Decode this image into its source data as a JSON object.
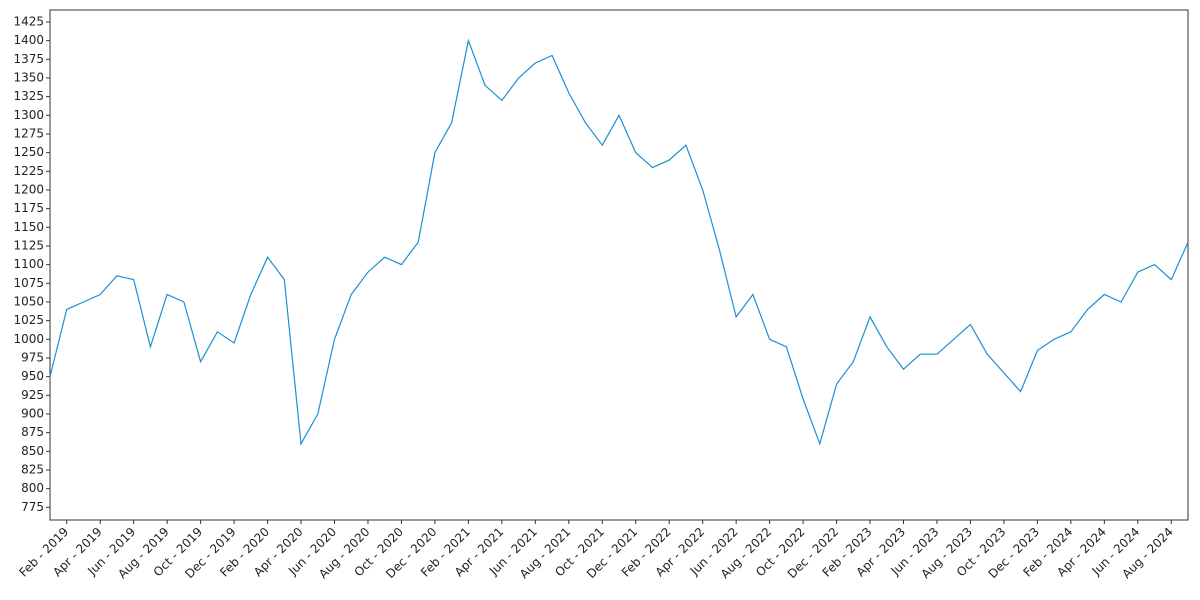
{
  "chart_data": {
    "type": "line",
    "x": [
      "2019-01",
      "2019-02",
      "2019-03",
      "2019-04",
      "2019-05",
      "2019-06",
      "2019-07",
      "2019-08",
      "2019-09",
      "2019-10",
      "2019-11",
      "2019-12",
      "2020-01",
      "2020-02",
      "2020-03",
      "2020-04",
      "2020-05",
      "2020-06",
      "2020-07",
      "2020-08",
      "2020-09",
      "2020-10",
      "2020-11",
      "2020-12",
      "2021-01",
      "2021-02",
      "2021-03",
      "2021-04",
      "2021-05",
      "2021-06",
      "2021-07",
      "2021-08",
      "2021-09",
      "2021-10",
      "2021-11",
      "2021-12",
      "2022-01",
      "2022-02",
      "2022-03",
      "2022-04",
      "2022-05",
      "2022-06",
      "2022-07",
      "2022-08",
      "2022-09",
      "2022-10",
      "2022-11",
      "2022-12",
      "2023-01",
      "2023-02",
      "2023-03",
      "2023-04",
      "2023-05",
      "2023-06",
      "2023-07",
      "2023-08",
      "2023-09",
      "2023-10",
      "2023-11",
      "2023-12",
      "2024-01",
      "2024-02",
      "2024-03",
      "2024-04",
      "2024-05",
      "2024-06",
      "2024-07",
      "2024-08",
      "2024-09"
    ],
    "series": [
      {
        "color": "#1b8fd2",
        "values": [
          950,
          1040,
          1050,
          1060,
          1085,
          1080,
          990,
          1060,
          1050,
          970,
          1010,
          995,
          1060,
          1110,
          1080,
          860,
          900,
          1000,
          1060,
          1090,
          1110,
          1100,
          1130,
          1250,
          1290,
          1400,
          1340,
          1320,
          1350,
          1370,
          1380,
          1330,
          1290,
          1260,
          1300,
          1250,
          1230,
          1240,
          1260,
          1200,
          1120,
          1030,
          1060,
          1000,
          990,
          920,
          860,
          940,
          970,
          1030,
          990,
          960,
          980,
          980,
          1000,
          1020,
          980,
          955,
          930,
          985,
          1000,
          1010,
          1040,
          1060,
          1050,
          1090,
          1100,
          1080,
          1130
        ]
      }
    ],
    "xlim": [
      "2019-01",
      "2024-09"
    ],
    "xticks": [
      {
        "value": "2019-02",
        "label": "Feb - 2019"
      },
      {
        "value": "2019-04",
        "label": "Apr - 2019"
      },
      {
        "value": "2019-06",
        "label": "Jun - 2019"
      },
      {
        "value": "2019-08",
        "label": "Aug - 2019"
      },
      {
        "value": "2019-10",
        "label": "Oct - 2019"
      },
      {
        "value": "2019-12",
        "label": "Dec - 2019"
      },
      {
        "value": "2020-02",
        "label": "Feb - 2020"
      },
      {
        "value": "2020-04",
        "label": "Apr - 2020"
      },
      {
        "value": "2020-06",
        "label": "Jun - 2020"
      },
      {
        "value": "2020-08",
        "label": "Aug - 2020"
      },
      {
        "value": "2020-10",
        "label": "Oct - 2020"
      },
      {
        "value": "2020-12",
        "label": "Dec - 2020"
      },
      {
        "value": "2021-02",
        "label": "Feb - 2021"
      },
      {
        "value": "2021-04",
        "label": "Apr - 2021"
      },
      {
        "value": "2021-06",
        "label": "Jun - 2021"
      },
      {
        "value": "2021-08",
        "label": "Aug - 2021"
      },
      {
        "value": "2021-10",
        "label": "Oct - 2021"
      },
      {
        "value": "2021-12",
        "label": "Dec - 2021"
      },
      {
        "value": "2022-02",
        "label": "Feb - 2022"
      },
      {
        "value": "2022-04",
        "label": "Apr - 2022"
      },
      {
        "value": "2022-06",
        "label": "Jun - 2022"
      },
      {
        "value": "2022-08",
        "label": "Aug - 2022"
      },
      {
        "value": "2022-10",
        "label": "Oct - 2022"
      },
      {
        "value": "2022-12",
        "label": "Dec - 2022"
      },
      {
        "value": "2023-02",
        "label": "Feb - 2023"
      },
      {
        "value": "2023-04",
        "label": "Apr - 2023"
      },
      {
        "value": "2023-06",
        "label": "Jun - 2023"
      },
      {
        "value": "2023-08",
        "label": "Aug - 2023"
      },
      {
        "value": "2023-10",
        "label": "Oct - 2023"
      },
      {
        "value": "2023-12",
        "label": "Dec - 2023"
      },
      {
        "value": "2024-02",
        "label": "Feb - 2024"
      },
      {
        "value": "2024-04",
        "label": "Apr - 2024"
      },
      {
        "value": "2024-06",
        "label": "Jun - 2024"
      },
      {
        "value": "2024-08",
        "label": "Aug - 2024"
      }
    ],
    "ylim": [
      758,
      1441
    ],
    "yticks": [
      775,
      800,
      825,
      850,
      875,
      900,
      925,
      950,
      975,
      1000,
      1025,
      1050,
      1075,
      1100,
      1125,
      1150,
      1175,
      1200,
      1225,
      1250,
      1275,
      1300,
      1325,
      1350,
      1375,
      1400,
      1425
    ],
    "grid": false
  }
}
